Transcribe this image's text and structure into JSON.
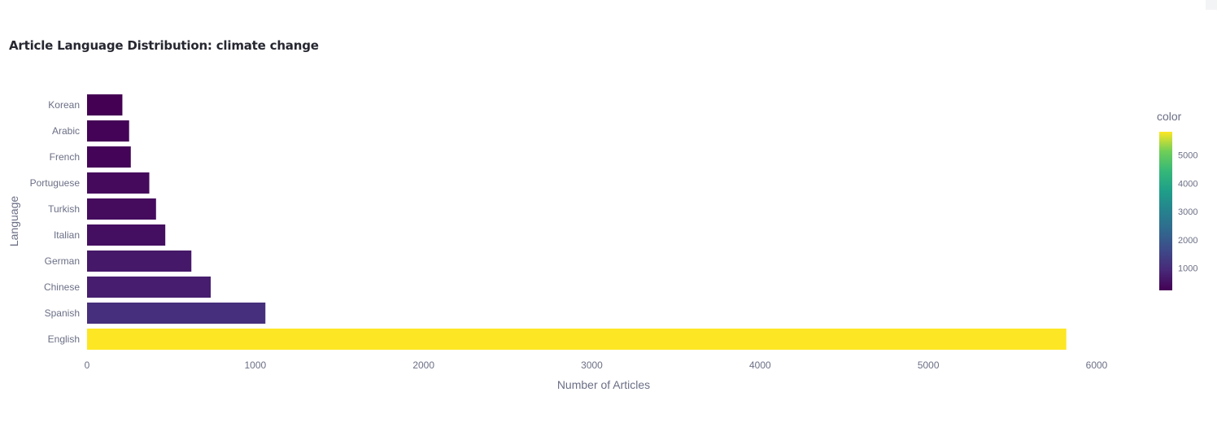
{
  "chart_data": {
    "type": "bar",
    "orientation": "horizontal",
    "title": "Article Language Distribution: climate change",
    "xlabel": "Number of Articles",
    "ylabel": "Language",
    "categories": [
      "English",
      "Spanish",
      "Chinese",
      "German",
      "Italian",
      "Turkish",
      "Portuguese",
      "French",
      "Arabic",
      "Korean"
    ],
    "values": [
      5820,
      1060,
      735,
      620,
      465,
      410,
      370,
      260,
      250,
      210
    ],
    "xlim": [
      0,
      6300
    ],
    "xticks": [
      0,
      1000,
      2000,
      3000,
      4000,
      5000,
      6000
    ],
    "grid": false,
    "colorbar": {
      "title": "color",
      "colorscale": "viridis",
      "range": [
        210,
        5820
      ],
      "ticks": [
        1000,
        2000,
        3000,
        4000,
        5000
      ]
    }
  }
}
